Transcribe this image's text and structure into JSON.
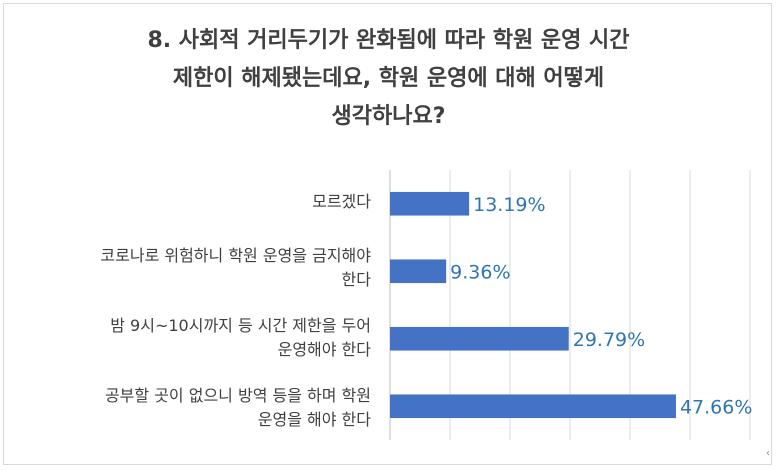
{
  "chart_data": {
    "type": "bar",
    "orientation": "horizontal",
    "title_lines": [
      "8. 사회적 거리두기가 완화됨에 따라 학원 운영 시간",
      "제한이 해제됐는데요, 학원 운영에 대해 어떻게",
      "생각하나요?"
    ],
    "categories": [
      [
        "모르겠다"
      ],
      [
        "코로나로 위험하니 학원 운영을 금지해야",
        "한다"
      ],
      [
        "밤 9시~10시까지 등 시간 제한을 두어",
        "운영해야 한다"
      ],
      [
        "공부할 곳이 없으니 방역 등을 하며 학원",
        "운영을 해야 한다"
      ]
    ],
    "values": [
      13.19,
      9.36,
      29.79,
      47.66
    ],
    "data_labels": [
      "13.19%",
      "9.36%",
      "29.79%",
      "47.66%"
    ],
    "xlim": [
      0,
      60
    ],
    "bar_color": "#4472c4",
    "label_color": "#2e75b6",
    "grid": true
  }
}
